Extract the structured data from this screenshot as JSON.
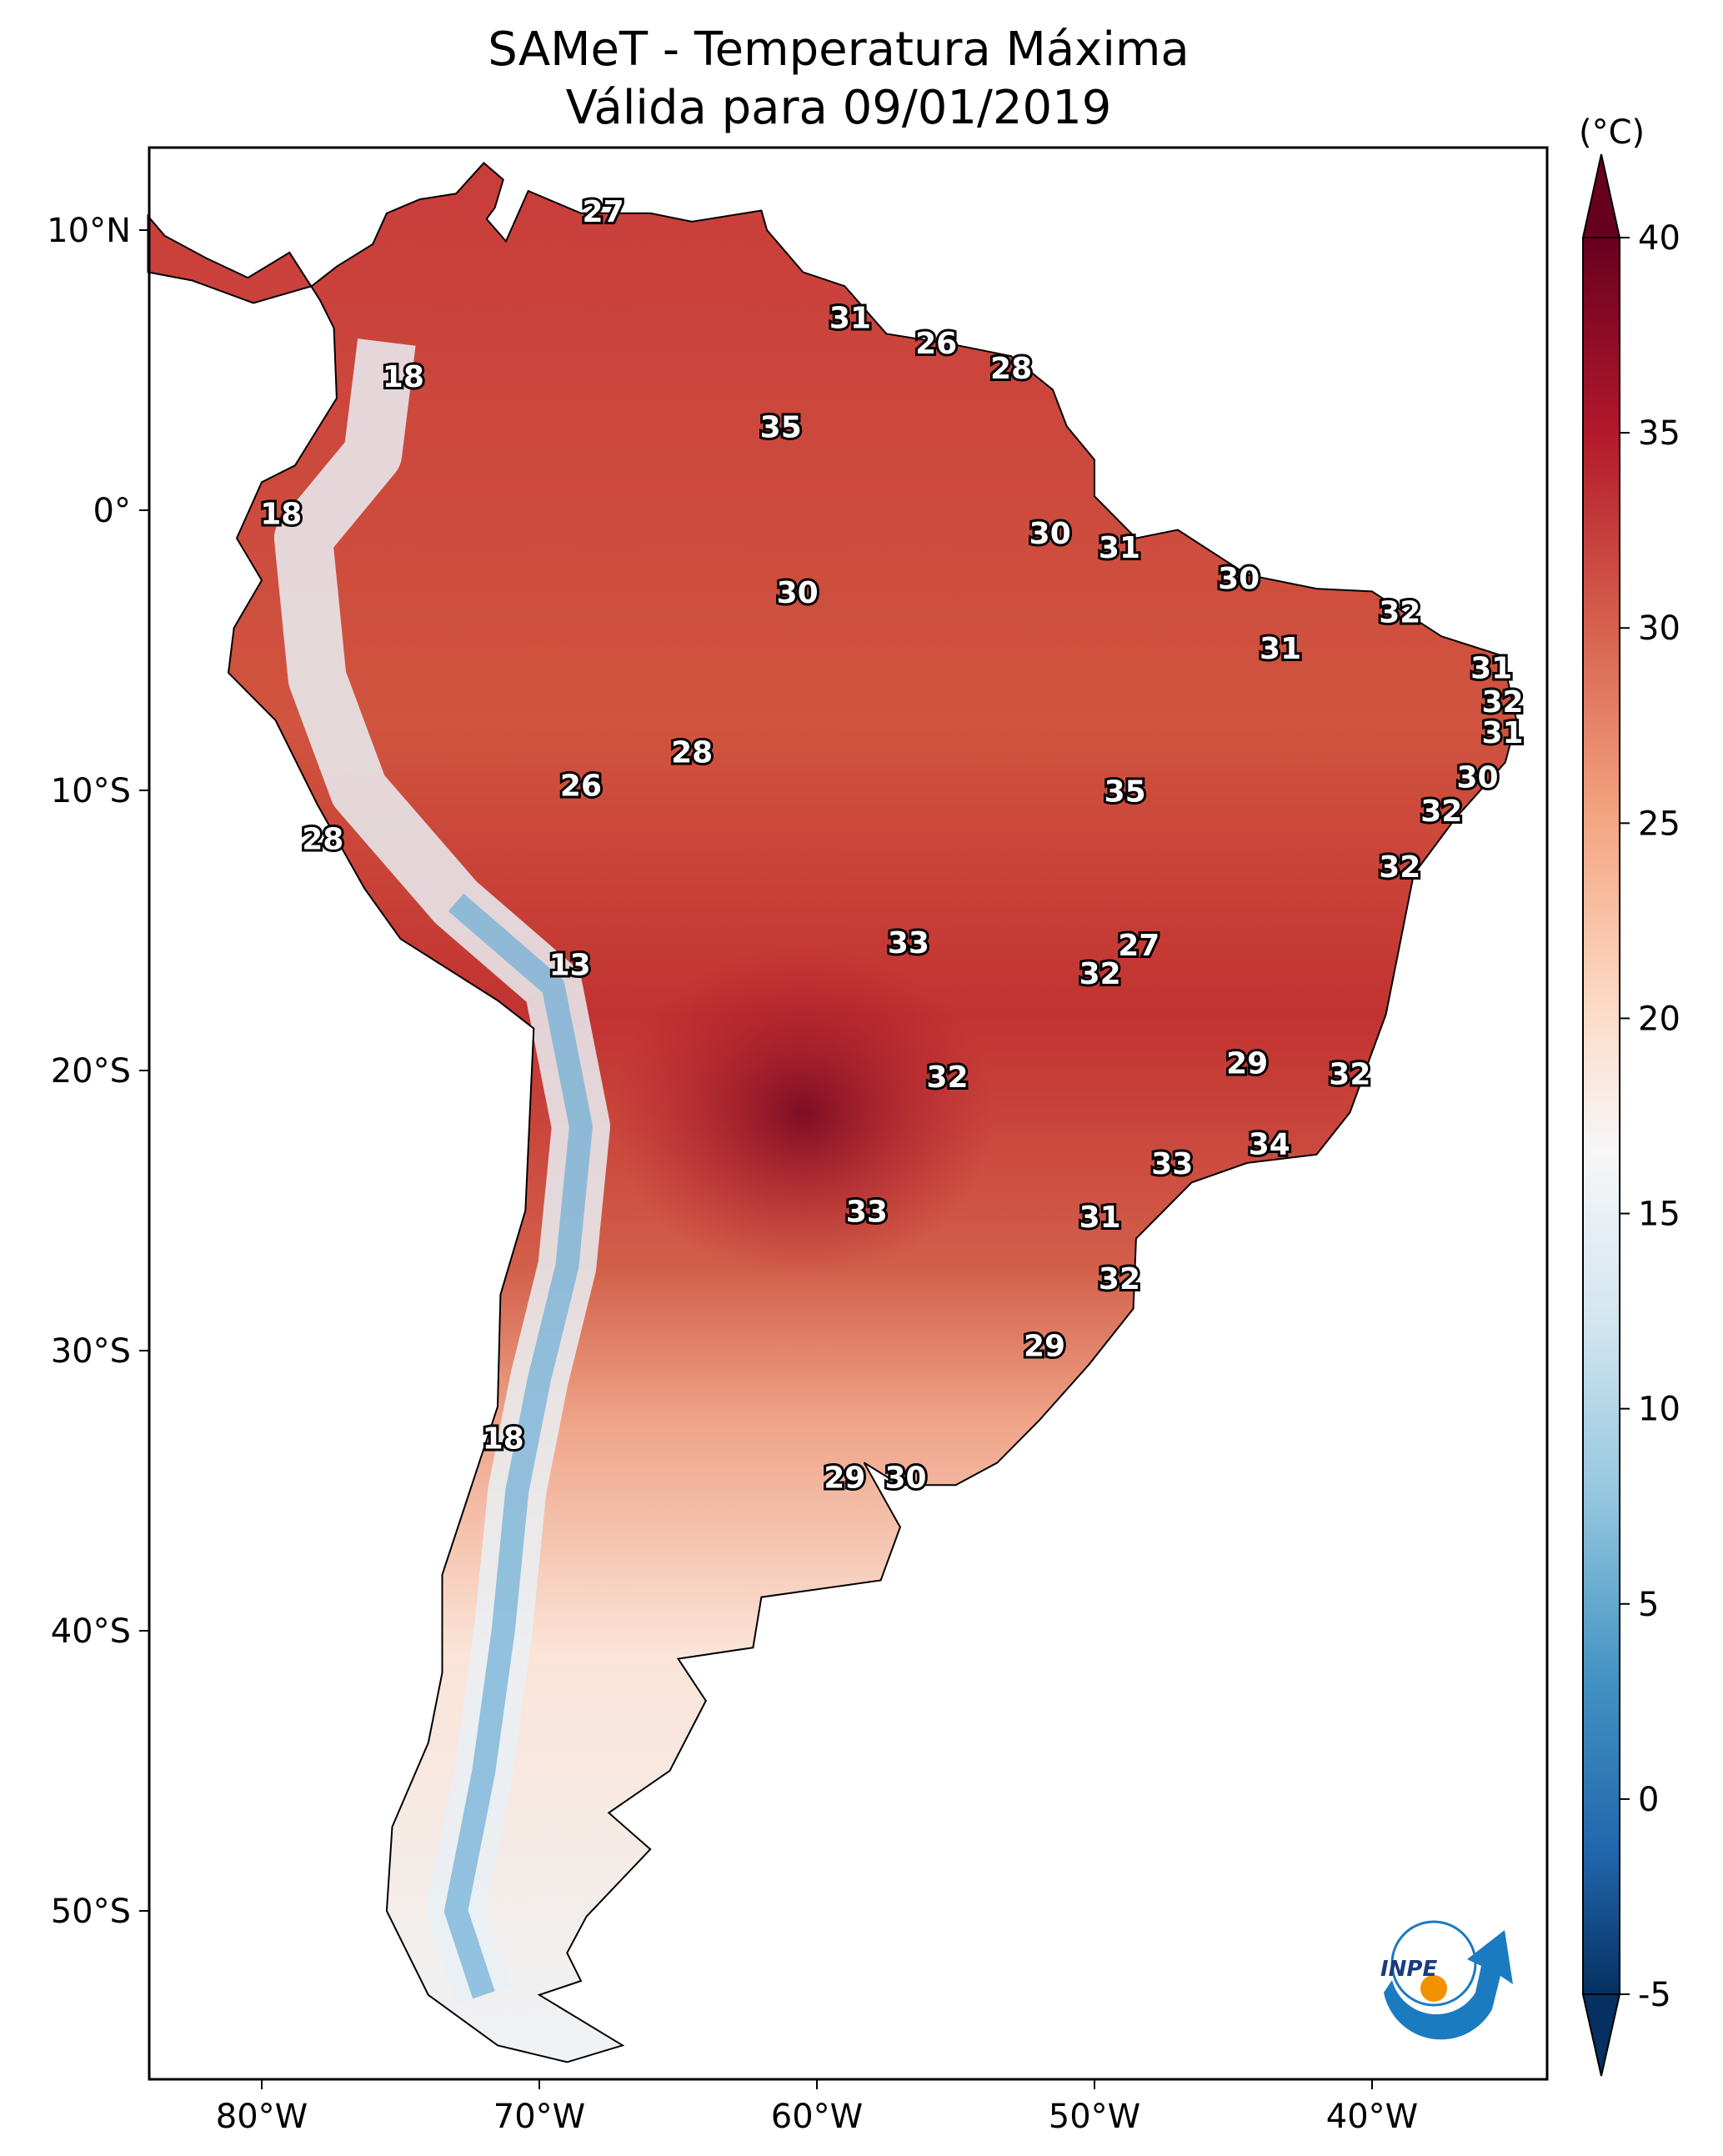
{
  "chart_data": {
    "type": "heatmap",
    "title": "SAMeT - Temperatura Máxima",
    "subtitle": "Válida para 09/01/2019",
    "colorbar": {
      "label": "(°C)",
      "range": [
        -5,
        40
      ],
      "extend": "both",
      "colormap": "RdBu_r",
      "ticks": [
        "40",
        "35",
        "30",
        "25",
        "20",
        "15",
        "10",
        "5",
        "0",
        "-5"
      ],
      "tick_values": [
        40,
        35,
        30,
        25,
        20,
        15,
        10,
        5,
        0,
        -5
      ]
    },
    "x_axis": {
      "range": [
        -84,
        -34
      ],
      "ticks": [
        {
          "value": -80,
          "label": "80°W"
        },
        {
          "value": -70,
          "label": "70°W"
        },
        {
          "value": -60,
          "label": "60°W"
        },
        {
          "value": -50,
          "label": "50°W"
        },
        {
          "value": -40,
          "label": "40°W"
        }
      ]
    },
    "y_axis": {
      "range": [
        -56,
        13
      ],
      "ticks": [
        {
          "value": 10,
          "label": "10°N"
        },
        {
          "value": 0,
          "label": "0°"
        },
        {
          "value": -10,
          "label": "10°S"
        },
        {
          "value": -20,
          "label": "20°S"
        },
        {
          "value": -30,
          "label": "30°S"
        },
        {
          "value": -40,
          "label": "40°S"
        },
        {
          "value": -50,
          "label": "50°S"
        }
      ]
    },
    "station_labels": [
      {
        "lon": -67.7,
        "lat": 10.6,
        "value": "27"
      },
      {
        "lon": -58.8,
        "lat": 6.8,
        "value": "31"
      },
      {
        "lon": -55.7,
        "lat": 5.9,
        "value": "26"
      },
      {
        "lon": -53.0,
        "lat": 5.0,
        "value": "28"
      },
      {
        "lon": -74.9,
        "lat": 4.7,
        "value": "18"
      },
      {
        "lon": -61.3,
        "lat": 2.9,
        "value": "35"
      },
      {
        "lon": -79.3,
        "lat": -0.2,
        "value": "18"
      },
      {
        "lon": -51.6,
        "lat": -0.9,
        "value": "30"
      },
      {
        "lon": -49.1,
        "lat": -1.4,
        "value": "31"
      },
      {
        "lon": -44.8,
        "lat": -2.5,
        "value": "30"
      },
      {
        "lon": -60.7,
        "lat": -3.0,
        "value": "30"
      },
      {
        "lon": -39.0,
        "lat": -3.7,
        "value": "32"
      },
      {
        "lon": -43.3,
        "lat": -5.0,
        "value": "31"
      },
      {
        "lon": -35.7,
        "lat": -5.7,
        "value": "31"
      },
      {
        "lon": -35.3,
        "lat": -6.9,
        "value": "32"
      },
      {
        "lon": -35.3,
        "lat": -8.0,
        "value": "31"
      },
      {
        "lon": -64.5,
        "lat": -8.7,
        "value": "28"
      },
      {
        "lon": -36.2,
        "lat": -9.6,
        "value": "30"
      },
      {
        "lon": -68.5,
        "lat": -9.9,
        "value": "26"
      },
      {
        "lon": -48.9,
        "lat": -10.1,
        "value": "35"
      },
      {
        "lon": -37.5,
        "lat": -10.8,
        "value": "32"
      },
      {
        "lon": -77.8,
        "lat": -11.8,
        "value": "28"
      },
      {
        "lon": -39.0,
        "lat": -12.8,
        "value": "32"
      },
      {
        "lon": -56.7,
        "lat": -15.5,
        "value": "33"
      },
      {
        "lon": -48.4,
        "lat": -15.6,
        "value": "27"
      },
      {
        "lon": -68.9,
        "lat": -16.3,
        "value": "13"
      },
      {
        "lon": -49.8,
        "lat": -16.6,
        "value": "32"
      },
      {
        "lon": -44.5,
        "lat": -19.8,
        "value": "29"
      },
      {
        "lon": -40.8,
        "lat": -20.2,
        "value": "32"
      },
      {
        "lon": -55.3,
        "lat": -20.3,
        "value": "32"
      },
      {
        "lon": -43.7,
        "lat": -22.7,
        "value": "34"
      },
      {
        "lon": -47.2,
        "lat": -23.4,
        "value": "33"
      },
      {
        "lon": -58.2,
        "lat": -25.1,
        "value": "33"
      },
      {
        "lon": -49.8,
        "lat": -25.3,
        "value": "31"
      },
      {
        "lon": -49.1,
        "lat": -27.5,
        "value": "32"
      },
      {
        "lon": -51.8,
        "lat": -29.9,
        "value": "29"
      },
      {
        "lon": -71.3,
        "lat": -33.2,
        "value": "18"
      },
      {
        "lon": -59.0,
        "lat": -34.6,
        "value": "29"
      },
      {
        "lon": -56.8,
        "lat": -34.6,
        "value": "30"
      }
    ]
  },
  "logo": {
    "text": "INPE"
  },
  "colors": {
    "hot": "#67001f",
    "warm": "#d6604d",
    "neutral": "#f7f7f7",
    "cool": "#4393c3",
    "cold": "#053061"
  }
}
